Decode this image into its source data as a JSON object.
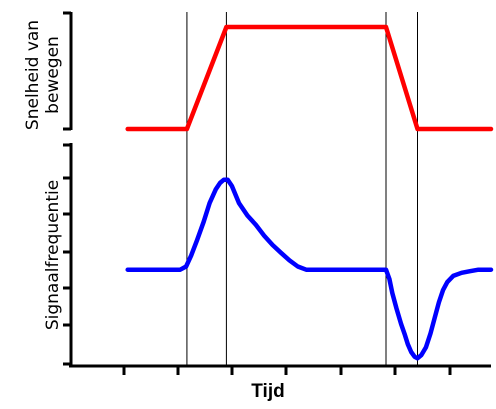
{
  "chart_data": [
    {
      "type": "line",
      "ylabel": "Snelheid van bewegen",
      "ylabel_lines": [
        "Snelheid van",
        "bewegen"
      ],
      "xlabel": "",
      "x_range": [
        0,
        100
      ],
      "y_range": [
        0,
        1
      ],
      "series": [
        {
          "color": "#ff0000",
          "x": [
            13.5,
            27.6,
            37.0,
            75.0,
            82.5,
            100
          ],
          "y": [
            0,
            0,
            1,
            1,
            0,
            0
          ]
        }
      ],
      "vertical_lines_x": [
        27.6,
        37.0,
        75.0,
        82.5
      ],
      "grid": false
    },
    {
      "type": "line",
      "ylabel": "Signaalfrequentie",
      "xlabel": "Tijd",
      "x_range": [
        0,
        100
      ],
      "y_range": [
        0,
        1
      ],
      "series": [
        {
          "color": "#0000ff",
          "x": [
            13.5,
            26.0,
            27.4,
            28.6,
            30.0,
            31.6,
            33.0,
            34.5,
            35.5,
            36.4,
            37.3,
            38.3,
            40.0,
            42.0,
            44.0,
            46.0,
            48.0,
            50.0,
            52.0,
            54.0,
            56.0,
            58.0,
            75.0,
            75.8,
            76.5,
            77.5,
            78.6,
            79.5,
            80.2,
            81.0,
            81.8,
            82.5,
            83.4,
            84.5,
            85.6,
            86.6,
            87.6,
            88.6,
            89.6,
            91.0,
            93.0,
            95.0,
            97.0,
            100
          ],
          "y": [
            0.434,
            0.434,
            0.448,
            0.497,
            0.566,
            0.65,
            0.734,
            0.797,
            0.825,
            0.839,
            0.839,
            0.811,
            0.734,
            0.678,
            0.636,
            0.587,
            0.545,
            0.51,
            0.476,
            0.448,
            0.434,
            0.434,
            0.434,
            0.392,
            0.329,
            0.259,
            0.189,
            0.14,
            0.098,
            0.063,
            0.042,
            0.035,
            0.049,
            0.084,
            0.147,
            0.217,
            0.287,
            0.343,
            0.378,
            0.406,
            0.42,
            0.427,
            0.434,
            0.434
          ]
        }
      ],
      "vertical_lines_x": [
        27.6,
        37.0,
        75.0,
        82.5
      ],
      "grid": false
    }
  ]
}
